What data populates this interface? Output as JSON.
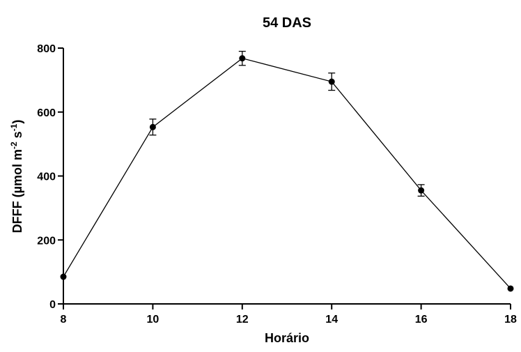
{
  "chart_data": {
    "type": "line",
    "title": "54 DAS",
    "xlabel": "Horário",
    "ylabel": {
      "base": "DFFF (µmol m",
      "sup1": "-2",
      "mid": " s",
      "sup2": "-1",
      "end": ")"
    },
    "xlim": [
      8,
      18
    ],
    "ylim": [
      0,
      800
    ],
    "x_ticks": [
      8,
      10,
      12,
      14,
      16,
      18
    ],
    "y_ticks": [
      0,
      200,
      400,
      600,
      800
    ],
    "grid": false,
    "legend": "none",
    "series": [
      {
        "color": "#000000",
        "x": [
          8,
          10,
          12,
          14,
          16,
          18
        ],
        "y": [
          85,
          553,
          768,
          695,
          355,
          48
        ],
        "error": [
          0,
          25,
          22,
          27,
          18,
          0
        ]
      }
    ]
  }
}
